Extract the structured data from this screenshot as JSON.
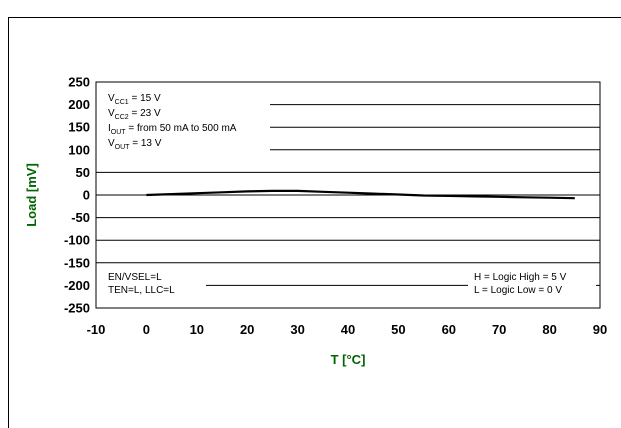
{
  "chart_data": {
    "type": "line",
    "title": "",
    "xlabel": "T [°C]",
    "ylabel": "Load [mV]",
    "xlim": [
      -10,
      90
    ],
    "ylim": [
      -250,
      250
    ],
    "x_ticks": [
      "-10",
      "0",
      "10",
      "20",
      "30",
      "40",
      "50",
      "60",
      "70",
      "80",
      "90"
    ],
    "y_ticks": [
      "250",
      "200",
      "150",
      "100",
      "50",
      "0",
      "-50",
      "-100",
      "-150",
      "-200",
      "-250"
    ],
    "grid": "horizontal",
    "series": [
      {
        "x": [
          0,
          5,
          10,
          15,
          20,
          25,
          30,
          35,
          40,
          45,
          50,
          55,
          60,
          65,
          70,
          75,
          80,
          85
        ],
        "y": [
          0,
          2,
          4,
          6,
          8,
          9,
          9,
          7,
          5,
          3,
          1,
          -1,
          -2,
          -3,
          -4,
          -5,
          -6,
          -7
        ]
      }
    ],
    "annotations_left": [
      {
        "main": "V",
        "sub": "CC1",
        "rest": " = 15 V"
      },
      {
        "main": "V",
        "sub": "CC2",
        "rest": " = 23 V"
      },
      {
        "main": "I",
        "sub": "OUT",
        "rest": " = from 50 mA to 500 mA"
      },
      {
        "main": "V",
        "sub": "OUT",
        "rest": " = 13 V"
      }
    ],
    "annotations_bottom_left": [
      "EN/VSEL=L",
      "TEN=L, LLC=L"
    ],
    "annotations_bottom_right": [
      "H = Logic High = 5 V",
      "L = Logic Low = 0 V"
    ],
    "colors": {
      "axis_title": "#006400",
      "line": "#000000",
      "grid": "#000000"
    }
  }
}
